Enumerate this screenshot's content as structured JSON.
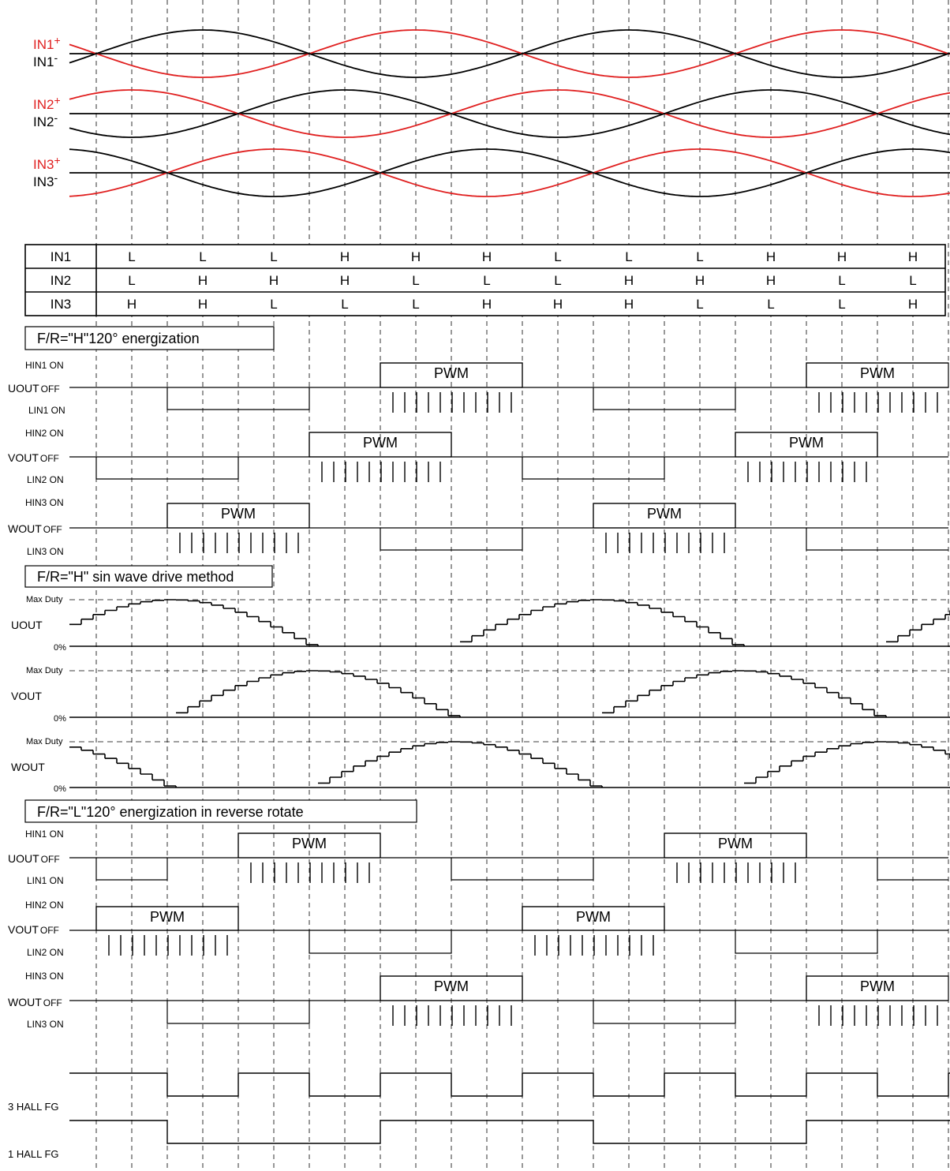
{
  "colors": {
    "positive": "#e02020",
    "negative": "#000000"
  },
  "hall_signals": [
    {
      "pos": "IN1",
      "neg": "IN1"
    },
    {
      "pos": "IN2",
      "neg": "IN2"
    },
    {
      "pos": "IN3",
      "neg": "IN3"
    }
  ],
  "hall_plus": "+",
  "hall_minus": "-",
  "logic_table": [
    {
      "name": "IN1",
      "states": [
        "L",
        "L",
        "L",
        "H",
        "H",
        "H",
        "L",
        "L",
        "L",
        "H",
        "H",
        "H"
      ]
    },
    {
      "name": "IN2",
      "states": [
        "L",
        "H",
        "H",
        "H",
        "L",
        "L",
        "L",
        "H",
        "H",
        "H",
        "L",
        "L"
      ]
    },
    {
      "name": "IN3",
      "states": [
        "H",
        "H",
        "L",
        "L",
        "L",
        "H",
        "H",
        "H",
        "L",
        "L",
        "L",
        "H"
      ]
    }
  ],
  "sections": {
    "fwd120": "F/R=\"H\"120° energization",
    "sine": "F/R=\"H\" sin wave drive method",
    "rev120": "F/R=\"L\"120° energization in reverse rotate"
  },
  "pwm_label": "PWM",
  "phases": [
    {
      "out": "UOUT",
      "hin": "HIN1 ON",
      "lin": "LIN1 ON"
    },
    {
      "out": "VOUT",
      "hin": "HIN2 ON",
      "lin": "LIN2 ON"
    },
    {
      "out": "WOUT",
      "hin": "HIN3 ON",
      "lin": "LIN3 ON"
    }
  ],
  "off_label": "OFF",
  "sine_outputs": [
    "UOUT",
    "VOUT",
    "WOUT"
  ],
  "max_duty": "Max Duty",
  "zero_pct": "0%",
  "fg": [
    "3 HALL FG",
    "1 HALL FG"
  ],
  "fwd_states": {
    "UOUT": [
      "off",
      "low",
      "low",
      "off",
      "high",
      "high",
      "off",
      "low",
      "low",
      "off",
      "high",
      "high"
    ],
    "VOUT": [
      "low",
      "low",
      "off",
      "high",
      "high",
      "off",
      "low",
      "low",
      "off",
      "high",
      "high",
      "off"
    ],
    "WOUT": [
      "off",
      "high",
      "high",
      "off",
      "low",
      "low",
      "off",
      "high",
      "high",
      "off",
      "low",
      "low"
    ]
  },
  "rev_states": {
    "UOUT": [
      "low",
      "off",
      "high",
      "high",
      "off",
      "low",
      "low",
      "off",
      "high",
      "high",
      "off",
      "low"
    ],
    "VOUT": [
      "high",
      "high",
      "off",
      "low",
      "low",
      "off",
      "high",
      "high",
      "off",
      "low",
      "low",
      "off"
    ],
    "WOUT": [
      "off",
      "low",
      "low",
      "off",
      "high",
      "high",
      "off",
      "low",
      "low",
      "off",
      "high",
      "high"
    ]
  },
  "sine_phase_deg": {
    "UOUT": 0,
    "VOUT": -120,
    "WOUT": 120
  },
  "fg_levels": {
    "3 HALL FG": [
      "high",
      "low",
      "high",
      "low",
      "high",
      "low",
      "high",
      "low",
      "high",
      "low",
      "high",
      "low",
      "high"
    ],
    "1 HALL FG": [
      "high",
      "low",
      "low",
      "low",
      "high",
      "high",
      "high",
      "low",
      "low",
      "low",
      "high",
      "high",
      "high"
    ]
  }
}
